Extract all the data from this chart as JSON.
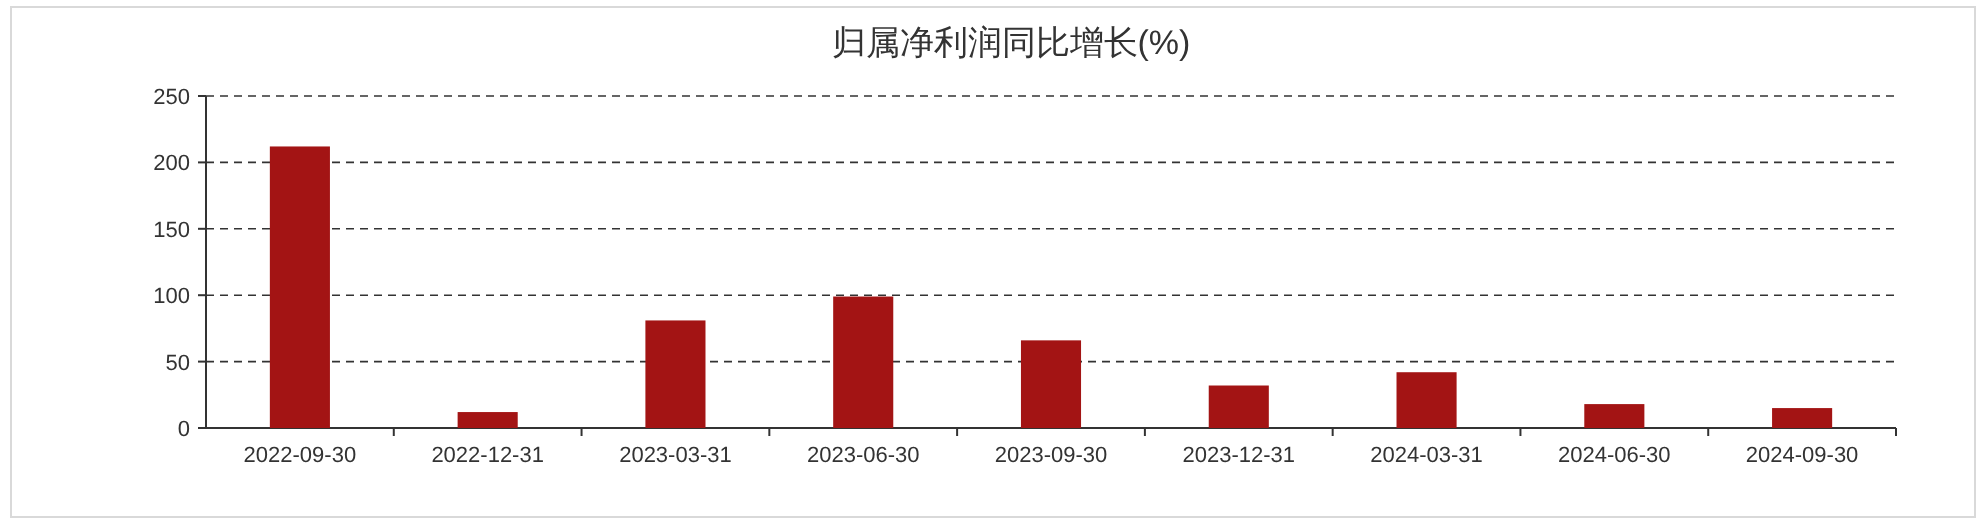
{
  "chart_data": {
    "type": "bar",
    "title": "归属净利润同比增长(%)",
    "categories": [
      "2022-09-30",
      "2022-12-31",
      "2023-03-31",
      "2023-06-30",
      "2023-09-30",
      "2023-12-31",
      "2024-03-31",
      "2024-06-30",
      "2024-09-30"
    ],
    "values": [
      212,
      12,
      81,
      99,
      66,
      32,
      42,
      18,
      15
    ],
    "color": "#a31414",
    "ylim": [
      0,
      250
    ],
    "yticks": [
      0,
      50,
      100,
      150,
      200,
      250
    ],
    "grid": "y"
  }
}
